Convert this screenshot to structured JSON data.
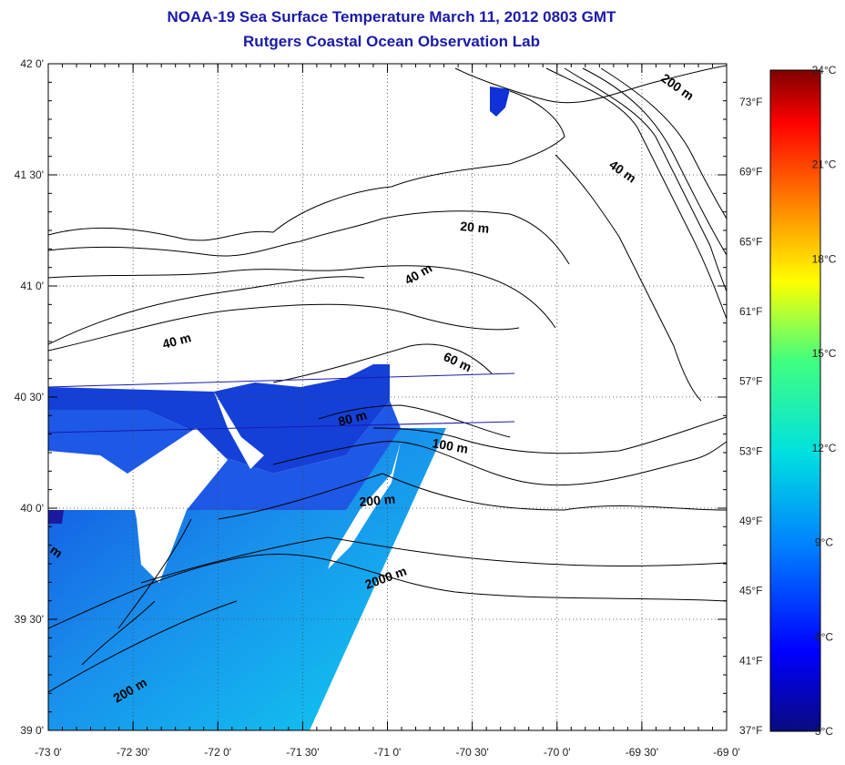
{
  "title": "NOAA-19 Sea Surface Temperature March 11, 2012 0803 GMT",
  "subtitle": "Rutgers Coastal Ocean Observation Lab",
  "map": {
    "lat_labels": [
      "42 0'",
      "41 30'",
      "41 0'",
      "40 30'",
      "40 0'",
      "39 30'",
      "39 0'"
    ],
    "lon_labels": [
      "-73 0'",
      "-72 30'",
      "-72 0'",
      "-71 30'",
      "-71 0'",
      "-70 30'",
      "-70 0'",
      "-69 30'",
      "-69 0'"
    ],
    "fahrenheit_labels": [
      "73°F",
      "69°F",
      "65°F",
      "61°F",
      "57°F",
      "53°F",
      "49°F",
      "45°F",
      "41°F",
      "37°F"
    ],
    "depth_labels": [
      "200 m",
      "40 m",
      "20 m",
      "40 m",
      "40 m",
      "60 m",
      "80 m",
      "100 m",
      "200 m",
      "2000 m",
      "200 m",
      "m"
    ],
    "colors": {
      "land_outline": "#000000",
      "cold_sst": "#1030d8",
      "warm_sst": "#10b8f0",
      "cloud_mask": "#ffffff"
    }
  },
  "colorbar": {
    "labels": [
      "24°C",
      "21°C",
      "18°C",
      "15°C",
      "12°C",
      "9°C",
      "6°C",
      "3°C"
    ],
    "min_c": 3,
    "max_c": 24,
    "stops": [
      "#0a0a80",
      "#0000ff",
      "#0080ff",
      "#00e0e0",
      "#40ff80",
      "#ffff00",
      "#ff8000",
      "#ff0000",
      "#800000"
    ]
  }
}
